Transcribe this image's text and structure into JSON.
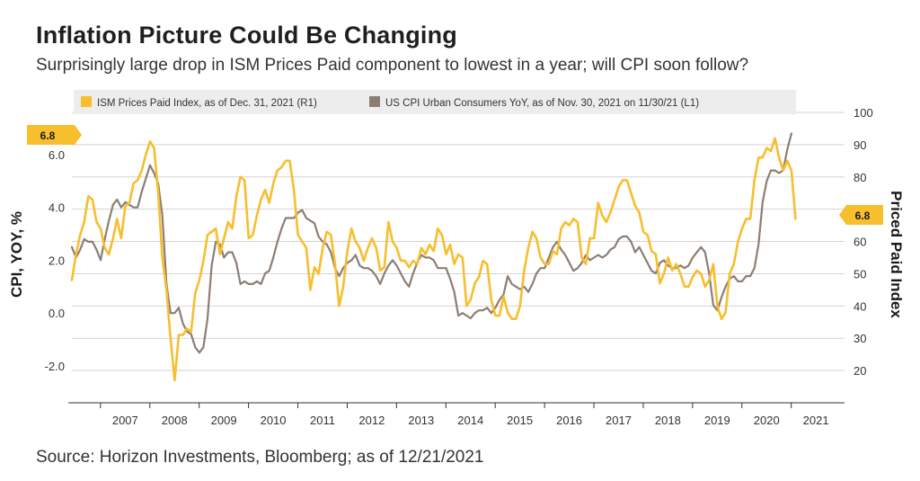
{
  "title": "Inflation Picture Could Be Changing",
  "subtitle": "Surprisingly large drop in ISM Prices Paid component to lowest in a year; will CPI soon follow?",
  "source": "Source: Horizon Investments, Bloomberg; as of 12/21/2021",
  "chart_data": {
    "type": "line",
    "xlabel": "",
    "ylabel_left": "CPI, YOY, %",
    "ylabel_right": "Priced Paid Index",
    "x_ticks": [
      "2007",
      "2008",
      "2009",
      "2010",
      "2011",
      "2012",
      "2013",
      "2014",
      "2015",
      "2016",
      "2017",
      "2018",
      "2019",
      "2020",
      "2021"
    ],
    "x_range": [
      2006.42,
      2022.08
    ],
    "left_ticks": [
      "6.0",
      "4.0",
      "2.0",
      "0.0",
      "-2.0"
    ],
    "left_ylim": [
      -3.4,
      7.6
    ],
    "right_ticks": [
      "100",
      "90",
      "80",
      "70",
      "60",
      "50",
      "40",
      "30",
      "20"
    ],
    "right_ylim": [
      10,
      100
    ],
    "legend_position": "top",
    "callouts": {
      "left": "6.8",
      "right": "6.8"
    },
    "colors": {
      "ism": "#F7BE2E",
      "cpi": "#8C7E74"
    },
    "series": [
      {
        "name": "ISM Prices Paid Index, as of Dec. 31, 2021 (R1)",
        "axis": "right",
        "start": 2006.42,
        "step": 0.0833333,
        "values": [
          48,
          56,
          62,
          66,
          74,
          73,
          66,
          64,
          58,
          56,
          61,
          67,
          61,
          71,
          72,
          78,
          79,
          82,
          87,
          91,
          89,
          75,
          55,
          45,
          30,
          17,
          31,
          31,
          33,
          32,
          44,
          48,
          54,
          62,
          63,
          64,
          56,
          61,
          66,
          64,
          74,
          80,
          79,
          61,
          62,
          68,
          73,
          76,
          72,
          78,
          82,
          83,
          85,
          85,
          76,
          62,
          60,
          58,
          45,
          52,
          50,
          58,
          63,
          62,
          53,
          40,
          46,
          57,
          64,
          60,
          58,
          54,
          58,
          61,
          58,
          51,
          52,
          66,
          60,
          58,
          54,
          54,
          52,
          54,
          53,
          58,
          56,
          59,
          57,
          64,
          62,
          56,
          59,
          53,
          56,
          55,
          40,
          42,
          47,
          49,
          54,
          53,
          42,
          37,
          37,
          43,
          38,
          36,
          36,
          40,
          51,
          58,
          63,
          61,
          55,
          53,
          53,
          57,
          56,
          64,
          66,
          65,
          67,
          66,
          55,
          53,
          61,
          61,
          72,
          68,
          66,
          69,
          73,
          77,
          79,
          79,
          75,
          71,
          69,
          63,
          62,
          57,
          56,
          47,
          50,
          55,
          51,
          53,
          50,
          46,
          46,
          49,
          51,
          50,
          46,
          48,
          53,
          40,
          36,
          38,
          50,
          53,
          60,
          64,
          67,
          67,
          79,
          86,
          86,
          89,
          88,
          92,
          86,
          82,
          85,
          82,
          67
        ]
      },
      {
        "name": "US CPI Urban Consumers YoY, as of Nov. 30, 2021 on 11/30/21 (L1)",
        "axis": "left",
        "start": 2006.42,
        "step": 0.0833333,
        "values": [
          2.5,
          2.1,
          2.4,
          2.8,
          2.7,
          2.7,
          2.4,
          2.0,
          2.8,
          3.5,
          4.1,
          4.3,
          4.0,
          4.2,
          4.1,
          4.0,
          4.0,
          4.6,
          5.1,
          5.6,
          5.3,
          4.9,
          3.7,
          1.1,
          0.0,
          0.0,
          0.2,
          -0.4,
          -0.7,
          -0.8,
          -1.3,
          -1.5,
          -1.3,
          -0.2,
          1.8,
          2.7,
          2.6,
          2.1,
          2.3,
          2.3,
          1.9,
          1.1,
          1.2,
          1.1,
          1.1,
          1.2,
          1.1,
          1.5,
          1.6,
          2.1,
          2.7,
          3.2,
          3.6,
          3.6,
          3.6,
          3.8,
          3.9,
          3.6,
          3.5,
          3.4,
          2.9,
          2.7,
          2.6,
          2.3,
          1.7,
          1.4,
          1.7,
          1.9,
          2.0,
          2.2,
          1.8,
          1.7,
          1.7,
          1.6,
          1.4,
          1.1,
          1.5,
          1.8,
          2.0,
          1.8,
          1.5,
          1.2,
          1.0,
          1.5,
          1.9,
          2.2,
          2.1,
          2.1,
          2.0,
          1.7,
          1.7,
          1.7,
          1.3,
          0.8,
          -0.1,
          0.0,
          -0.1,
          -0.2,
          0.0,
          0.1,
          0.1,
          0.2,
          0.0,
          0.2,
          0.5,
          0.7,
          1.4,
          1.1,
          1.0,
          0.9,
          1.0,
          0.8,
          1.1,
          1.5,
          1.7,
          1.7,
          2.1,
          2.5,
          2.7,
          2.4,
          2.2,
          1.9,
          1.6,
          1.7,
          1.9,
          2.2,
          2.0,
          2.1,
          2.2,
          2.1,
          2.2,
          2.4,
          2.5,
          2.8,
          2.9,
          2.9,
          2.7,
          2.3,
          2.5,
          2.2,
          1.9,
          1.6,
          1.5,
          1.9,
          2.0,
          1.8,
          1.7,
          1.7,
          1.8,
          1.7,
          1.8,
          2.1,
          2.3,
          2.5,
          2.3,
          1.5,
          0.3,
          0.1,
          0.6,
          1.0,
          1.3,
          1.4,
          1.2,
          1.2,
          1.4,
          1.4,
          1.7,
          2.6,
          4.2,
          5.0,
          5.4,
          5.4,
          5.3,
          5.4,
          6.2,
          6.8
        ]
      }
    ]
  }
}
